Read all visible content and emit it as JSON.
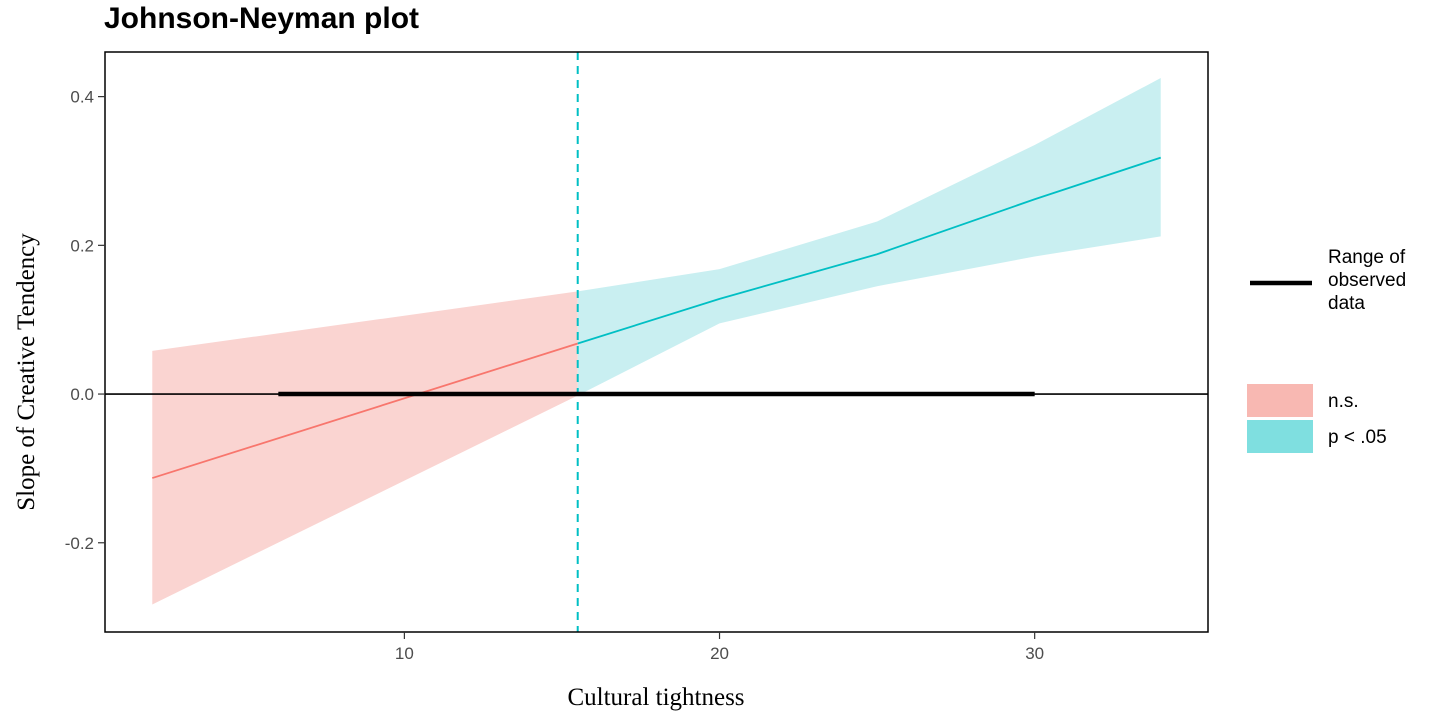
{
  "chart_data": {
    "type": "line",
    "title": "Johnson-Neyman plot",
    "xlabel": "Cultural tightness",
    "ylabel": "Slope of  Creative Tendency",
    "xlim": [
      0.5,
      35.5
    ],
    "ylim": [
      -0.32,
      0.46
    ],
    "x_ticks": [
      10,
      20,
      30
    ],
    "x_tick_labels": [
      "10",
      "20",
      "30"
    ],
    "y_ticks": [
      -0.2,
      0.0,
      0.2,
      0.4
    ],
    "y_tick_labels": [
      "-0.2",
      "0.0",
      "0.2",
      "0.4"
    ],
    "grid": false,
    "jn_point": 15.5,
    "observed_range": [
      6,
      30
    ],
    "observed_range_y": 0,
    "series": [
      {
        "name": "n.s.",
        "color": "#f8766d",
        "fill": "#fad4d1",
        "x": [
          2,
          15.5
        ],
        "slope": [
          -0.113,
          0.068
        ],
        "lower": [
          -0.283,
          -0.002
        ],
        "upper": [
          0.058,
          0.138
        ]
      },
      {
        "name": "p < .05",
        "color": "#00bfc4",
        "fill": "#c9eff1",
        "x": [
          15.5,
          20,
          25,
          30,
          34
        ],
        "slope": [
          0.068,
          0.128,
          0.188,
          0.262,
          0.318
        ],
        "lower": [
          -0.002,
          0.095,
          0.145,
          0.185,
          0.212
        ],
        "upper": [
          0.138,
          0.168,
          0.232,
          0.335,
          0.425
        ]
      }
    ],
    "legend": {
      "placement": "right",
      "range_label_lines": [
        "Range of",
        "observed",
        "data"
      ],
      "items": [
        {
          "label": "n.s.",
          "color": "#f8b8b2"
        },
        {
          "label": "p < .05",
          "color": "#7fdfe0"
        }
      ]
    },
    "colors": {
      "dashed_line": "#00bfc4",
      "zero_line": "#000000",
      "range_line": "#000000"
    }
  }
}
